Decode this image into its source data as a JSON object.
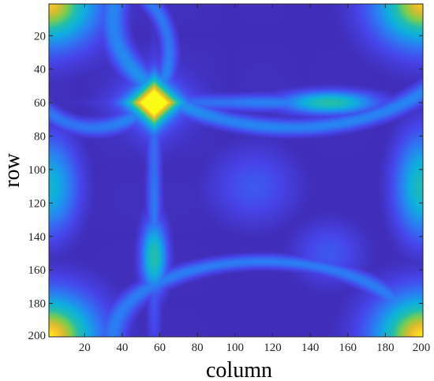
{
  "chart_data": {
    "type": "heatmap",
    "title": "",
    "xlabel": "column",
    "ylabel": "row",
    "xlim": [
      1,
      200
    ],
    "ylim": [
      1,
      200
    ],
    "y_direction": "down",
    "colormap": "parula",
    "x_ticks": [
      20,
      40,
      60,
      80,
      100,
      120,
      140,
      160,
      180,
      200
    ],
    "y_ticks": [
      20,
      40,
      60,
      80,
      100,
      120,
      140,
      160,
      180,
      200
    ],
    "x_tick_labels": [
      "20",
      "40",
      "60",
      "80",
      "100",
      "120",
      "140",
      "160",
      "180",
      "200"
    ],
    "y_tick_labels": [
      "20",
      "40",
      "60",
      "80",
      "100",
      "120",
      "140",
      "160",
      "180",
      "200"
    ],
    "value_range": [
      0,
      1
    ],
    "features": [
      {
        "kind": "diamond_peak",
        "column": 57,
        "row": 60,
        "value": 1.0
      },
      {
        "kind": "lens_peak",
        "column": 150,
        "row": 60,
        "value": 0.55
      },
      {
        "kind": "lens_peak",
        "column": 57,
        "row": 152,
        "value": 0.55
      },
      {
        "kind": "corner_peak",
        "column": 1,
        "row": 1,
        "value": 0.9
      },
      {
        "kind": "corner_peak",
        "column": 200,
        "row": 1,
        "value": 0.9
      },
      {
        "kind": "corner_peak",
        "column": 1,
        "row": 200,
        "value": 0.95
      },
      {
        "kind": "corner_peak",
        "column": 200,
        "row": 200,
        "value": 0.95
      },
      {
        "kind": "edge_lobe",
        "column": 1,
        "row": 110,
        "value": 0.45
      },
      {
        "kind": "edge_lobe",
        "column": 200,
        "row": 110,
        "value": 0.5
      },
      {
        "kind": "basin",
        "column": 110,
        "row": 110,
        "value": 0.2
      },
      {
        "kind": "basin",
        "column": 150,
        "row": 150,
        "value": 0.2
      }
    ]
  }
}
